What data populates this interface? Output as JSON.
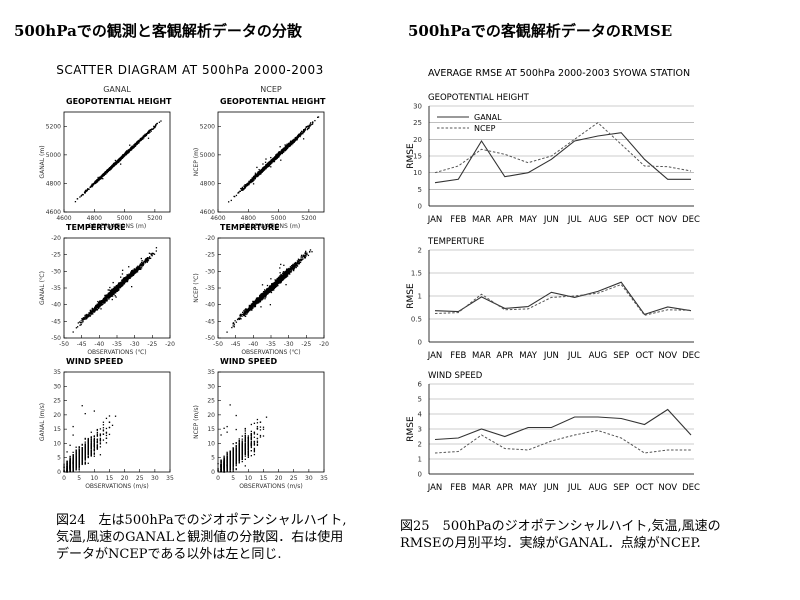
{
  "headers": {
    "left": "500hPaでの観測と客観解析データの分散",
    "right": "500hPaでの客観解析データのRMSE"
  },
  "captions": {
    "left": "図24　左は500hPaでのジオポテンシャルハイト,気温,風速のGANALと観測値の分散図．右は使用データがNCEPである以外は左と同じ.",
    "right": "図25　500hPaのジオポテンシャルハイト,気温,風速のRMSEの月別平均．実線がGANAL．点線がNCEP."
  },
  "colors": {
    "ganal": "#333333",
    "ncep": "#555555",
    "scatter": "#000000"
  },
  "chart_data": [
    {
      "type": "scatter",
      "title": "SCATTER DIAGRAM AT 500hPa 2000-2003",
      "columns": [
        "GANAL",
        "NCEP"
      ],
      "panels": [
        {
          "key": "gh",
          "subtitle": "GEOPOTENTIAL HEIGHT",
          "xlabel": "OBSERVATIONS (m)",
          "ylabels": [
            "GANAL (m)",
            "NCEP (m)"
          ],
          "xlim": [
            4600,
            5300
          ],
          "ylim": [
            4600,
            5300
          ],
          "xticks": [
            4600,
            4800,
            5000,
            5200
          ],
          "yticks": [
            4600,
            4800,
            5000,
            5200
          ],
          "point_count": 1400,
          "spread": [
            6,
            9
          ],
          "x_range_of_points": [
            4640,
            5290
          ]
        },
        {
          "key": "temp",
          "subtitle": "TEMPERTURE",
          "xlabel": "OBSERVATIONS (℃)",
          "ylabels": [
            "GANAL (℃)",
            "NCEP (℃)"
          ],
          "xlim": [
            -50,
            -20
          ],
          "ylim": [
            -50,
            -20
          ],
          "xticks": [
            -50,
            -45,
            -40,
            -35,
            -30,
            -25,
            -20
          ],
          "yticks": [
            -50,
            -45,
            -40,
            -35,
            -30,
            -25,
            -20
          ],
          "point_count": 1400,
          "spread": [
            0.6,
            0.7
          ],
          "x_range_of_points": [
            -49,
            -21
          ]
        },
        {
          "key": "wind",
          "subtitle": "WIND SPEED",
          "xlabel": "OBSERVATIONS (m/s)",
          "ylabels": [
            "GANAL (m/s)",
            "NCEP (m/s)"
          ],
          "xlim": [
            0,
            35
          ],
          "ylim": [
            0,
            35
          ],
          "xticks": [
            0,
            5,
            10,
            15,
            20,
            25,
            30,
            35
          ],
          "yticks": [
            0,
            5,
            10,
            15,
            20,
            25,
            30,
            35
          ],
          "point_count": 1200,
          "spread": [
            2.6,
            2.9
          ],
          "x_range_of_points": [
            0,
            34
          ]
        }
      ]
    },
    {
      "type": "line",
      "title": "AVERAGE RMSE AT 500hPa 2000-2003 SYOWA STATION",
      "categories": [
        "JAN",
        "FEB",
        "MAR",
        "APR",
        "MAY",
        "JUN",
        "JUL",
        "AUG",
        "SEP",
        "OCT",
        "NOV",
        "DEC"
      ],
      "ylabel": "RMSE",
      "legend": {
        "placement": "top-left",
        "entries": [
          "GANAL",
          "NCEP"
        ]
      },
      "panels": [
        {
          "key": "gh",
          "subtitle": "GEOPOTENTIAL HEIGHT",
          "ylim": [
            0,
            30
          ],
          "yticks": [
            0,
            5,
            10,
            15,
            20,
            25,
            30
          ],
          "series": [
            {
              "name": "GANAL",
              "style": "solid",
              "values": [
                7,
                8,
                19.5,
                8.8,
                10,
                14,
                19.5,
                21,
                22,
                14,
                8,
                8
              ]
            },
            {
              "name": "NCEP",
              "style": "dotted",
              "values": [
                10,
                12,
                17,
                15.5,
                13,
                15,
                20,
                25,
                18.5,
                12,
                11.8,
                10.5
              ]
            }
          ]
        },
        {
          "key": "temp",
          "subtitle": "TEMPERTURE",
          "ylim": [
            0,
            2
          ],
          "yticks": [
            0,
            0.5,
            1,
            1.5,
            2
          ],
          "series": [
            {
              "name": "GANAL",
              "style": "solid",
              "values": [
                0.68,
                0.66,
                0.98,
                0.73,
                0.77,
                1.08,
                0.97,
                1.1,
                1.3,
                0.6,
                0.76,
                0.68
              ]
            },
            {
              "name": "NCEP",
              "style": "dotted",
              "values": [
                0.62,
                0.64,
                1.04,
                0.7,
                0.72,
                0.97,
                1.0,
                1.06,
                1.25,
                0.58,
                0.7,
                0.69
              ]
            }
          ]
        },
        {
          "key": "wind",
          "subtitle": "WIND SPEED",
          "ylim": [
            0,
            6
          ],
          "yticks": [
            0,
            1,
            2,
            3,
            4,
            5,
            6
          ],
          "series": [
            {
              "name": "GANAL",
              "style": "solid",
              "values": [
                2.3,
                2.4,
                3.0,
                2.5,
                3.1,
                3.1,
                3.8,
                3.8,
                3.7,
                3.3,
                4.3,
                2.6
              ]
            },
            {
              "name": "NCEP",
              "style": "dotted",
              "values": [
                1.4,
                1.5,
                2.6,
                1.7,
                1.6,
                2.2,
                2.6,
                2.9,
                2.4,
                1.4,
                1.6,
                1.6
              ]
            }
          ]
        }
      ]
    }
  ]
}
